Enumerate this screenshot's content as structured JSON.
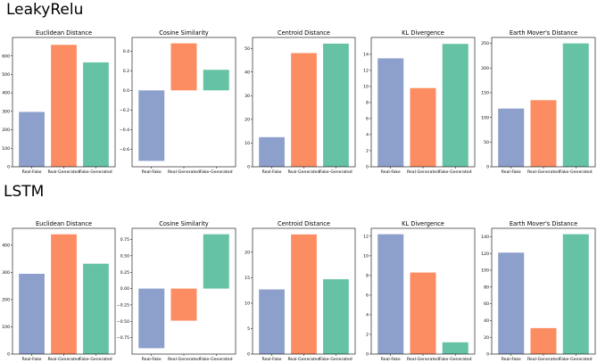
{
  "colors": {
    "real_fake": "#8DA0CB",
    "real_generated": "#FC8D62",
    "fake_generated": "#66C2A5"
  },
  "chart_data": [
    {
      "section": "LeakyRelu",
      "charts": [
        {
          "type": "bar",
          "title": "Euclidean Distance",
          "categories": [
            "Real-Fake",
            "Real-Generated",
            "Fake-Generated"
          ],
          "values": [
            297,
            660,
            565
          ],
          "ylim": [
            0,
            700
          ],
          "yticks": [
            0,
            100,
            200,
            300,
            400,
            500,
            600
          ],
          "yticklabels": [
            "0",
            "100",
            "200",
            "300",
            "400",
            "500",
            "600"
          ]
        },
        {
          "type": "bar",
          "title": "Cosine Similarity",
          "categories": [
            "Real-Fake",
            "Real-Generated",
            "Fake-Generated"
          ],
          "values": [
            -0.72,
            0.48,
            0.21
          ],
          "ylim": [
            -0.78,
            0.54
          ],
          "yticks": [
            -0.6,
            -0.4,
            -0.2,
            0.0,
            0.2,
            0.4
          ],
          "yticklabels": [
            "−0.6",
            "−0.4",
            "−0.2",
            "0.0",
            "0.2",
            "0.4"
          ]
        },
        {
          "type": "bar",
          "title": "Centroid Distance",
          "categories": [
            "Real-Fake",
            "Real-Generated",
            "Fake-Generated"
          ],
          "values": [
            12.5,
            48,
            52
          ],
          "ylim": [
            0,
            54.6
          ],
          "yticks": [
            0,
            10,
            20,
            30,
            40,
            50
          ],
          "yticklabels": [
            "0",
            "10",
            "20",
            "30",
            "40",
            "50"
          ]
        },
        {
          "type": "bar",
          "title": "KL Divergence",
          "categories": [
            "Real-Fake",
            "Real-Generated",
            "Fake-Generated"
          ],
          "values": [
            13.5,
            9.8,
            15.3
          ],
          "ylim": [
            0,
            16.1
          ],
          "yticks": [
            0,
            2,
            4,
            6,
            8,
            10,
            12,
            14
          ],
          "yticklabels": [
            "0",
            "2",
            "4",
            "6",
            "8",
            "10",
            "12",
            "14"
          ]
        },
        {
          "type": "bar",
          "title": "Earth Mover's Distance",
          "categories": [
            "Real-Fake",
            "Real-Generated",
            "Fake-Generated"
          ],
          "values": [
            118,
            135,
            250
          ],
          "ylim": [
            0,
            262
          ],
          "yticks": [
            0,
            50,
            100,
            150,
            200,
            250
          ],
          "yticklabels": [
            "0",
            "50",
            "100",
            "150",
            "200",
            "250"
          ]
        }
      ]
    },
    {
      "section": "LSTM",
      "charts": [
        {
          "type": "bar",
          "title": "Euclidean Distance",
          "categories": [
            "Real-Fake",
            "Real-Generated",
            "Fake-Generated"
          ],
          "values": [
            295,
            440,
            332
          ],
          "ylim": [
            0,
            462
          ],
          "yticks": [
            0,
            100,
            200,
            300,
            400
          ],
          "yticklabels": [
            "0",
            "100",
            "200",
            "300",
            "400"
          ]
        },
        {
          "type": "bar",
          "title": "Cosine Similarity",
          "categories": [
            "Real-Fake",
            "Real-Generated",
            "Fake-Generated"
          ],
          "values": [
            -0.91,
            -0.49,
            0.83
          ],
          "ylim": [
            -1.0,
            0.92
          ],
          "yticks": [
            -0.75,
            -0.5,
            -0.25,
            0.0,
            0.25,
            0.5,
            0.75
          ],
          "yticklabels": [
            "−0.75",
            "−0.50",
            "−0.25",
            "0.00",
            "0.25",
            "0.50",
            "0.75"
          ]
        },
        {
          "type": "bar",
          "title": "Centroid Distance",
          "categories": [
            "Real-Fake",
            "Real-Generated",
            "Fake-Generated"
          ],
          "values": [
            12.7,
            23.5,
            14.7
          ],
          "ylim": [
            0,
            24.7
          ],
          "yticks": [
            0,
            5,
            10,
            15,
            20
          ],
          "yticklabels": [
            "0",
            "5",
            "10",
            "15",
            "20"
          ]
        },
        {
          "type": "bar",
          "title": "KL Divergence",
          "categories": [
            "Real-Fake",
            "Real-Generated",
            "Fake-Generated"
          ],
          "values": [
            12.2,
            8.3,
            1.2
          ],
          "ylim": [
            0,
            12.8
          ],
          "yticks": [
            0,
            2,
            4,
            6,
            8,
            10,
            12
          ],
          "yticklabels": [
            "0",
            "2",
            "4",
            "6",
            "8",
            "10",
            "12"
          ]
        },
        {
          "type": "bar",
          "title": "Earth Mover's Distance",
          "categories": [
            "Real-Fake",
            "Real-Generated",
            "Fake-Generated"
          ],
          "values": [
            121,
            31,
            143
          ],
          "ylim": [
            0,
            150
          ],
          "yticks": [
            0,
            20,
            40,
            60,
            80,
            100,
            120,
            140
          ],
          "yticklabels": [
            "0",
            "20",
            "40",
            "60",
            "80",
            "100",
            "120",
            "140"
          ]
        }
      ]
    }
  ]
}
